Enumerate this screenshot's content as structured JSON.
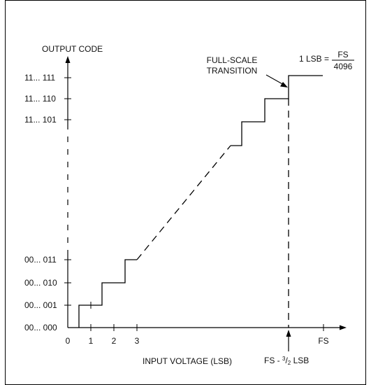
{
  "diagram": {
    "y_axis_title": "OUTPUT CODE",
    "y_codes_top": [
      "11... 111",
      "11... 110",
      "11... 101"
    ],
    "y_codes_bottom": [
      "00... 011",
      "00... 010",
      "00... 001",
      "00... 000"
    ],
    "x_ticks": [
      "0",
      "1",
      "2",
      "3"
    ],
    "x_fs_label": "FS",
    "x_axis_title": "INPUT VOLTAGE (LSB)",
    "fs_marker_label": {
      "prefix": "FS - ",
      "sup": "3",
      "mid": "/",
      "sub": "2",
      "suffix": " LSB"
    },
    "annotation": {
      "line1": "FULL-SCALE",
      "line2": "TRANSITION"
    },
    "lsb_formula": {
      "lhs": "1 LSB =",
      "numerator": "FS",
      "denominator": "4096"
    }
  }
}
